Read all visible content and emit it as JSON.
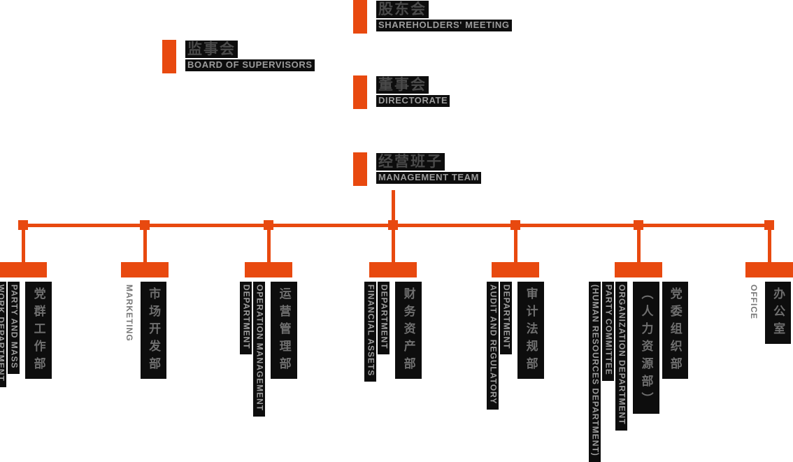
{
  "palette": {
    "orange": "#E8490F",
    "label_bg": "#0D0D0D",
    "cjk_text": "#6F6F6F",
    "latin_text": "#9C9C9C",
    "latin_text_plain": "#787878",
    "title_cjk": "#4A4A4A"
  },
  "top_nodes": [
    {
      "id": "shareholders-meeting",
      "zh": "股东会",
      "en": "SHAREHOLDERS' MEETING"
    },
    {
      "id": "board-of-supervisors",
      "zh": "监事会",
      "en": "BOARD OF SUPERVISORS"
    },
    {
      "id": "directorate",
      "zh": "董事会",
      "en": "DIRECTORATE"
    },
    {
      "id": "management-team",
      "zh": "经营班子",
      "en": "MANAGEMENT TEAM"
    }
  ],
  "departments": [
    {
      "id": "party-and-mass-work-department",
      "zh_columns": [
        "党群工作部"
      ],
      "en_columns": [
        "WORK DEPARTMENT",
        "PARTY AND MASS"
      ],
      "en_boxed": true
    },
    {
      "id": "marketing",
      "zh_columns": [
        "市场开发部"
      ],
      "en_columns": [
        "MARKETING"
      ],
      "en_boxed": false
    },
    {
      "id": "operation-management-department",
      "zh_columns": [
        "运营管理部"
      ],
      "en_columns": [
        "DEPARTMENT",
        "OPERATION MANAGEMENT"
      ],
      "en_boxed": true
    },
    {
      "id": "financial-assets-department",
      "zh_columns": [
        "财务资产部"
      ],
      "en_columns": [
        "FINANCIAL ASSETS",
        "DEPARTMENT"
      ],
      "en_boxed": true
    },
    {
      "id": "audit-and-regulatory-department",
      "zh_columns": [
        "审计法规部"
      ],
      "en_columns": [
        "AUDIT AND REGULATORY",
        "DEPARTMENT"
      ],
      "en_boxed": true
    },
    {
      "id": "party-committee-organization-department",
      "zh_columns": [
        "（人力资源部）",
        "党委组织部"
      ],
      "en_columns": [
        "(HUMAN RESOURCES DEPARTMENT)",
        "PARTY COMMITTEE",
        "ORGANIZATION DEPARTMENT"
      ],
      "en_boxed": true
    },
    {
      "id": "office",
      "zh_columns": [
        "办公室"
      ],
      "en_columns": [
        "OFFICE"
      ],
      "en_boxed": false
    }
  ]
}
